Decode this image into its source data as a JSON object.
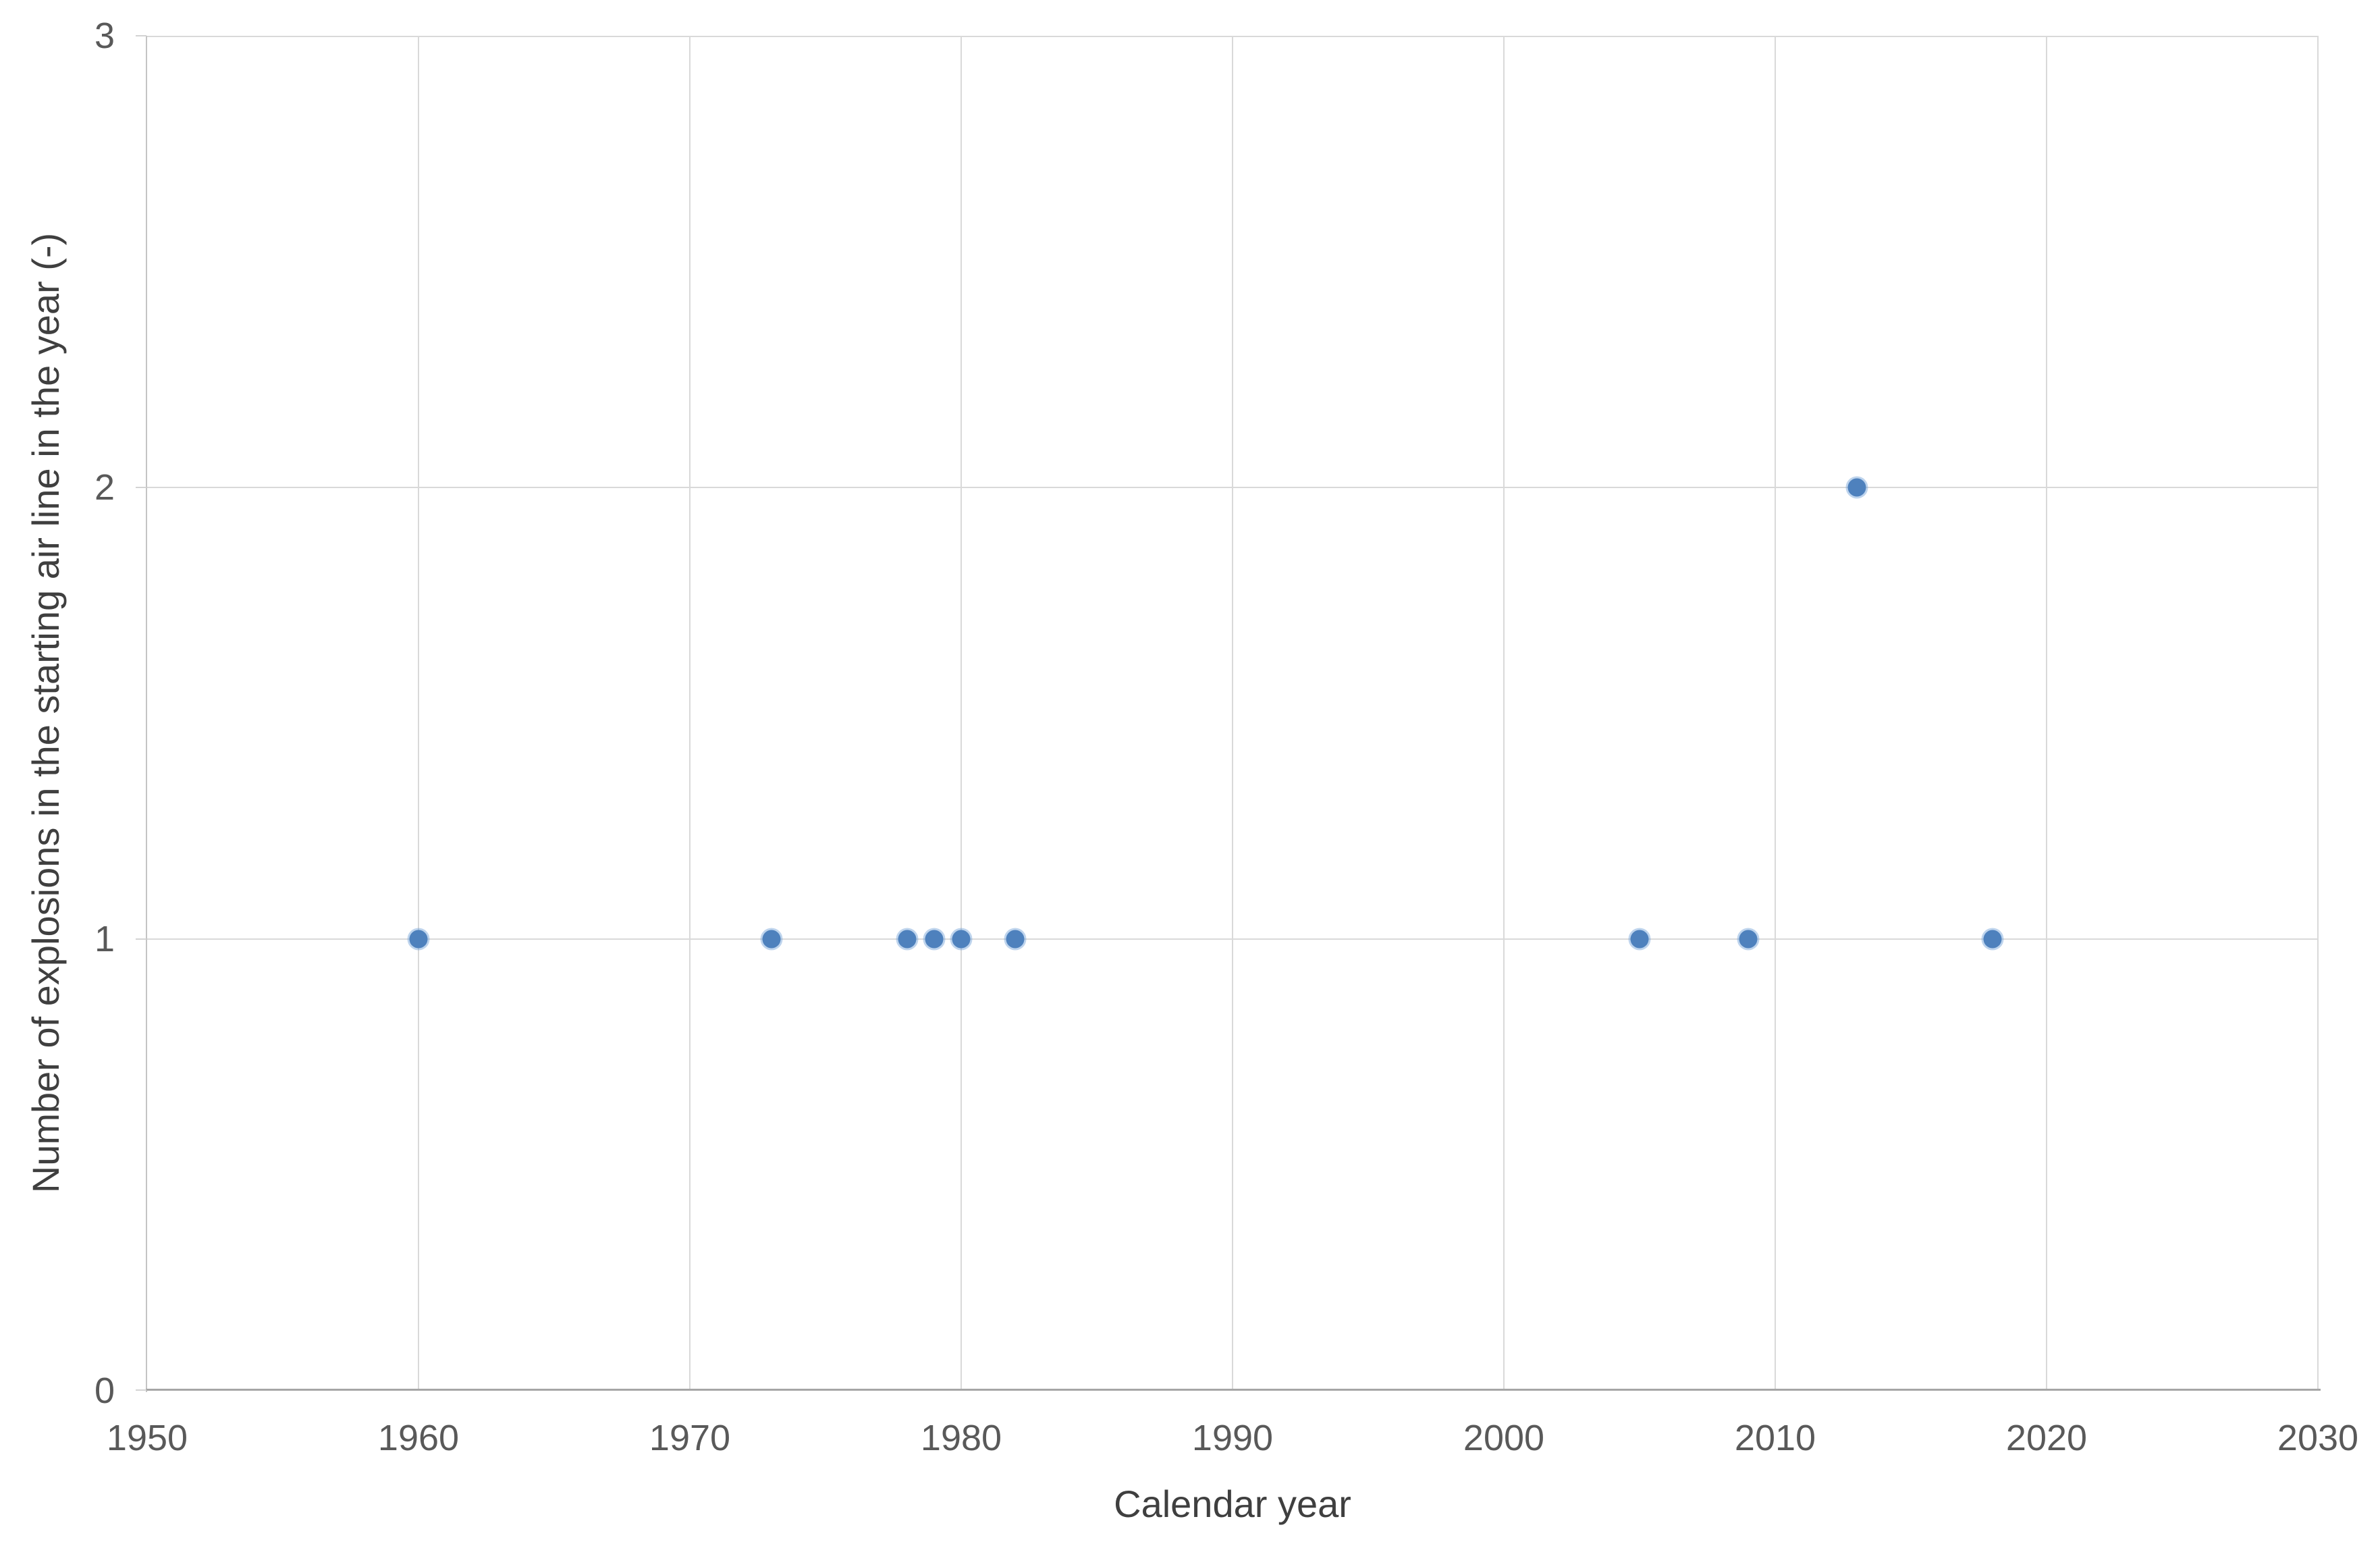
{
  "chart_data": {
    "type": "scatter",
    "title": "",
    "xlabel": "Calendar year",
    "ylabel": "Number of explosions in the starting air line in the year (-)",
    "xlim": [
      1950,
      2030
    ],
    "ylim": [
      0,
      3
    ],
    "x_ticks": [
      1950,
      1960,
      1970,
      1980,
      1990,
      2000,
      2010,
      2020,
      2030
    ],
    "y_ticks": [
      0,
      1,
      2,
      3
    ],
    "grid": "on",
    "legend": "none",
    "series": [
      {
        "points": [
          {
            "x": 1960,
            "y": 1
          },
          {
            "x": 1973,
            "y": 1
          },
          {
            "x": 1978,
            "y": 1
          },
          {
            "x": 1979,
            "y": 1
          },
          {
            "x": 1980,
            "y": 1
          },
          {
            "x": 1982,
            "y": 1
          },
          {
            "x": 2005,
            "y": 1
          },
          {
            "x": 2009,
            "y": 1
          },
          {
            "x": 2013,
            "y": 2
          },
          {
            "x": 2018,
            "y": 1
          }
        ],
        "marker_color": "#4E81BD",
        "marker_shape": "circle"
      }
    ],
    "colors": {
      "gridline": "#D9D9D9",
      "axis_line": "#C4C4C4",
      "axis_line_bottom": "#A6A6A6",
      "tick_label": "#595959",
      "axis_title": "#3F3F3F",
      "background": "#FFFFFF"
    }
  }
}
